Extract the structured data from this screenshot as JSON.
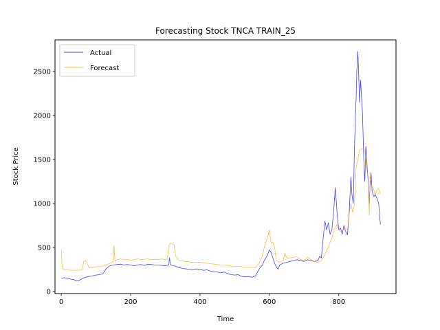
{
  "chart_data": {
    "type": "line",
    "title": "Forecasting Stock TNCA TRAIN_25",
    "xlabel": "Time",
    "ylabel": "Stock Price",
    "xlim": [
      -18,
      965
    ],
    "ylim": [
      -25,
      2860
    ],
    "xticks": [
      0,
      200,
      400,
      600,
      800
    ],
    "yticks": [
      0,
      500,
      1000,
      1500,
      2000,
      2500
    ],
    "grid": false,
    "legend_position": "top-left",
    "series": [
      {
        "name": "Actual",
        "color": "#0000ff",
        "points": [
          [
            0,
            150
          ],
          [
            10,
            155
          ],
          [
            20,
            150
          ],
          [
            25,
            140
          ],
          [
            35,
            135
          ],
          [
            40,
            125
          ],
          [
            50,
            120
          ],
          [
            60,
            145
          ],
          [
            70,
            160
          ],
          [
            80,
            170
          ],
          [
            90,
            175
          ],
          [
            100,
            185
          ],
          [
            110,
            190
          ],
          [
            120,
            200
          ],
          [
            125,
            230
          ],
          [
            130,
            260
          ],
          [
            140,
            290
          ],
          [
            150,
            300
          ],
          [
            160,
            305
          ],
          [
            170,
            310
          ],
          [
            180,
            300
          ],
          [
            190,
            305
          ],
          [
            200,
            300
          ],
          [
            210,
            290
          ],
          [
            220,
            300
          ],
          [
            230,
            305
          ],
          [
            240,
            295
          ],
          [
            250,
            310
          ],
          [
            260,
            305
          ],
          [
            270,
            300
          ],
          [
            280,
            300
          ],
          [
            290,
            295
          ],
          [
            300,
            290
          ],
          [
            310,
            300
          ],
          [
            312,
            380
          ],
          [
            315,
            300
          ],
          [
            320,
            295
          ],
          [
            330,
            285
          ],
          [
            340,
            270
          ],
          [
            350,
            260
          ],
          [
            360,
            255
          ],
          [
            370,
            250
          ],
          [
            380,
            245
          ],
          [
            390,
            255
          ],
          [
            400,
            250
          ],
          [
            410,
            240
          ],
          [
            420,
            245
          ],
          [
            430,
            230
          ],
          [
            440,
            225
          ],
          [
            450,
            220
          ],
          [
            460,
            210
          ],
          [
            470,
            220
          ],
          [
            480,
            200
          ],
          [
            490,
            190
          ],
          [
            500,
            185
          ],
          [
            510,
            190
          ],
          [
            520,
            170
          ],
          [
            530,
            165
          ],
          [
            540,
            170
          ],
          [
            550,
            160
          ],
          [
            560,
            175
          ],
          [
            570,
            250
          ],
          [
            580,
            300
          ],
          [
            585,
            350
          ],
          [
            590,
            380
          ],
          [
            595,
            420
          ],
          [
            600,
            470
          ],
          [
            605,
            440
          ],
          [
            610,
            380
          ],
          [
            615,
            320
          ],
          [
            620,
            280
          ],
          [
            625,
            250
          ],
          [
            630,
            300
          ],
          [
            640,
            320
          ],
          [
            650,
            330
          ],
          [
            660,
            340
          ],
          [
            670,
            350
          ],
          [
            680,
            360
          ],
          [
            690,
            350
          ],
          [
            700,
            340
          ],
          [
            710,
            360
          ],
          [
            720,
            350
          ],
          [
            730,
            340
          ],
          [
            740,
            350
          ],
          [
            745,
            400
          ],
          [
            750,
            380
          ],
          [
            755,
            600
          ],
          [
            760,
            800
          ],
          [
            765,
            700
          ],
          [
            770,
            780
          ],
          [
            775,
            650
          ],
          [
            780,
            700
          ],
          [
            785,
            900
          ],
          [
            790,
            1180
          ],
          [
            795,
            900
          ],
          [
            800,
            700
          ],
          [
            805,
            720
          ],
          [
            810,
            650
          ],
          [
            815,
            750
          ],
          [
            820,
            680
          ],
          [
            825,
            640
          ],
          [
            830,
            900
          ],
          [
            835,
            1300
          ],
          [
            838,
            1100
          ],
          [
            842,
            1000
          ],
          [
            845,
            1600
          ],
          [
            848,
            2000
          ],
          [
            850,
            2200
          ],
          [
            852,
            2500
          ],
          [
            855,
            2730
          ],
          [
            858,
            2400
          ],
          [
            860,
            2150
          ],
          [
            863,
            2400
          ],
          [
            866,
            2200
          ],
          [
            868,
            2050
          ],
          [
            870,
            1800
          ],
          [
            872,
            1500
          ],
          [
            875,
            1250
          ],
          [
            878,
            1650
          ],
          [
            880,
            1550
          ],
          [
            882,
            1400
          ],
          [
            885,
            1250
          ],
          [
            888,
            1000
          ],
          [
            890,
            1200
          ],
          [
            893,
            1350
          ],
          [
            896,
            1150
          ],
          [
            899,
            1100
          ],
          [
            902,
            1080
          ],
          [
            905,
            1100
          ],
          [
            910,
            1060
          ],
          [
            915,
            1000
          ],
          [
            920,
            760
          ]
        ]
      },
      {
        "name": "Forecast",
        "color": "#ffa500",
        "points": [
          [
            0,
            480
          ],
          [
            3,
            260
          ],
          [
            10,
            250
          ],
          [
            20,
            245
          ],
          [
            30,
            240
          ],
          [
            40,
            240
          ],
          [
            50,
            240
          ],
          [
            60,
            245
          ],
          [
            62,
            280
          ],
          [
            65,
            340
          ],
          [
            70,
            350
          ],
          [
            75,
            320
          ],
          [
            80,
            270
          ],
          [
            90,
            270
          ],
          [
            100,
            280
          ],
          [
            110,
            280
          ],
          [
            120,
            290
          ],
          [
            130,
            300
          ],
          [
            140,
            320
          ],
          [
            150,
            340
          ],
          [
            152,
            520
          ],
          [
            155,
            340
          ],
          [
            160,
            360
          ],
          [
            170,
            370
          ],
          [
            180,
            360
          ],
          [
            190,
            360
          ],
          [
            200,
            355
          ],
          [
            210,
            360
          ],
          [
            220,
            370
          ],
          [
            230,
            360
          ],
          [
            240,
            365
          ],
          [
            250,
            370
          ],
          [
            260,
            360
          ],
          [
            270,
            365
          ],
          [
            280,
            360
          ],
          [
            290,
            370
          ],
          [
            300,
            360
          ],
          [
            305,
            360
          ],
          [
            310,
            520
          ],
          [
            315,
            550
          ],
          [
            320,
            540
          ],
          [
            325,
            530
          ],
          [
            330,
            400
          ],
          [
            340,
            350
          ],
          [
            360,
            340
          ],
          [
            380,
            330
          ],
          [
            400,
            330
          ],
          [
            420,
            320
          ],
          [
            440,
            310
          ],
          [
            460,
            300
          ],
          [
            480,
            295
          ],
          [
            500,
            285
          ],
          [
            520,
            280
          ],
          [
            540,
            275
          ],
          [
            560,
            270
          ],
          [
            570,
            320
          ],
          [
            580,
            400
          ],
          [
            585,
            500
          ],
          [
            590,
            560
          ],
          [
            595,
            620
          ],
          [
            600,
            700
          ],
          [
            605,
            550
          ],
          [
            610,
            560
          ],
          [
            615,
            500
          ],
          [
            620,
            350
          ],
          [
            630,
            330
          ],
          [
            640,
            350
          ],
          [
            645,
            430
          ],
          [
            650,
            380
          ],
          [
            660,
            380
          ],
          [
            670,
            390
          ],
          [
            680,
            390
          ],
          [
            690,
            360
          ],
          [
            700,
            350
          ],
          [
            710,
            390
          ],
          [
            720,
            360
          ],
          [
            730,
            340
          ],
          [
            740,
            330
          ],
          [
            750,
            350
          ],
          [
            760,
            420
          ],
          [
            770,
            500
          ],
          [
            775,
            560
          ],
          [
            780,
            600
          ],
          [
            785,
            700
          ],
          [
            790,
            720
          ],
          [
            795,
            760
          ],
          [
            800,
            700
          ],
          [
            805,
            680
          ],
          [
            810,
            690
          ],
          [
            815,
            700
          ],
          [
            820,
            720
          ],
          [
            825,
            700
          ],
          [
            830,
            880
          ],
          [
            835,
            1000
          ],
          [
            840,
            900
          ],
          [
            845,
            980
          ],
          [
            850,
            1400
          ],
          [
            855,
            1500
          ],
          [
            860,
            1600
          ],
          [
            865,
            1620
          ],
          [
            870,
            1620
          ],
          [
            875,
            1620
          ],
          [
            880,
            1400
          ],
          [
            885,
            1300
          ],
          [
            888,
            860
          ],
          [
            890,
            1300
          ],
          [
            895,
            1200
          ],
          [
            900,
            1170
          ],
          [
            905,
            1100
          ],
          [
            910,
            1150
          ],
          [
            915,
            1170
          ],
          [
            920,
            1100
          ]
        ]
      }
    ]
  }
}
